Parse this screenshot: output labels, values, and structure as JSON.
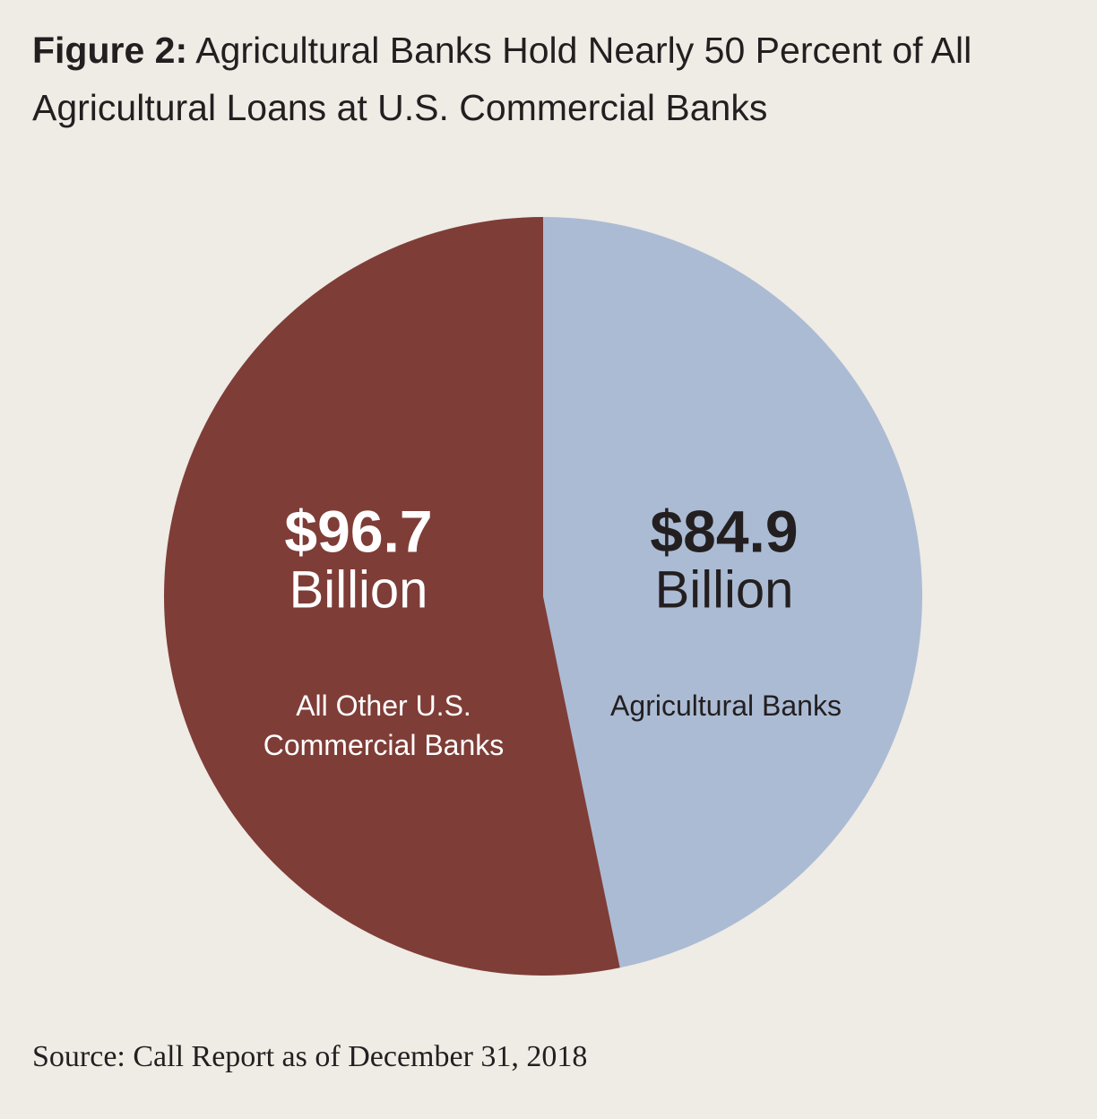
{
  "chart_data": {
    "type": "pie",
    "title_prefix": "Figure 2:",
    "title": "Agricultural Banks Hold Nearly 50 Percent of All Agricultural Loans at U.S. Commercial Banks",
    "categories": [
      "Agricultural Banks",
      "All Other U.S. Commercial Banks"
    ],
    "values": [
      84.9,
      96.7
    ],
    "value_labels": [
      "$84.9",
      "$96.7"
    ],
    "unit": "Billion",
    "colors": [
      "#abbbd4",
      "#7f3d37"
    ],
    "source": "Source: Call Report as of December 31, 2018"
  }
}
